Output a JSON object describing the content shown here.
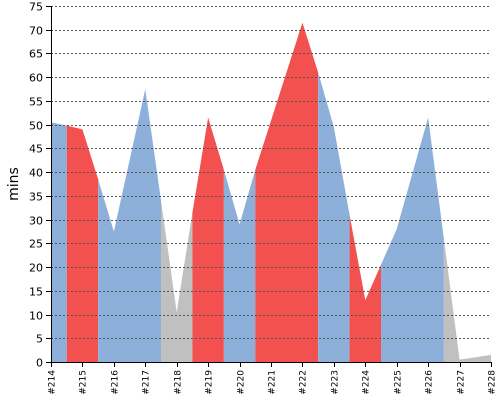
{
  "chart_data": {
    "type": "area",
    "title": "",
    "xlabel": "",
    "ylabel": "mins",
    "ylim": [
      0,
      75
    ],
    "yticks": [
      0,
      5,
      10,
      15,
      20,
      25,
      30,
      35,
      40,
      45,
      50,
      55,
      60,
      65,
      70,
      75
    ],
    "grid": true,
    "legend": "none",
    "categories": [
      "#214",
      "#215",
      "#216",
      "#217",
      "#218",
      "#219",
      "#220",
      "#221",
      "#222",
      "#223",
      "#224",
      "#225",
      "#226",
      "#227",
      "#228"
    ],
    "points": [
      {
        "x": 0.0,
        "y": 50.5
      },
      {
        "x": 0.5,
        "y": 49.8
      },
      {
        "x": 1.0,
        "y": 49.0
      },
      {
        "x": 1.5,
        "y": 38.5
      },
      {
        "x": 2.0,
        "y": 27.5
      },
      {
        "x": 3.0,
        "y": 57.5
      },
      {
        "x": 3.5,
        "y": 34.0
      },
      {
        "x": 4.0,
        "y": 10.5
      },
      {
        "x": 4.5,
        "y": 31.5
      },
      {
        "x": 5.0,
        "y": 51.5
      },
      {
        "x": 5.5,
        "y": 40.5
      },
      {
        "x": 6.0,
        "y": 29.0
      },
      {
        "x": 6.5,
        "y": 40.5
      },
      {
        "x": 8.0,
        "y": 71.5
      },
      {
        "x": 8.5,
        "y": 61.0
      },
      {
        "x": 9.0,
        "y": 49.5
      },
      {
        "x": 9.5,
        "y": 31.0
      },
      {
        "x": 10.0,
        "y": 13.0
      },
      {
        "x": 10.5,
        "y": 20.5
      },
      {
        "x": 11.0,
        "y": 28.0
      },
      {
        "x": 12.0,
        "y": 51.5
      },
      {
        "x": 12.5,
        "y": 26.0
      },
      {
        "x": 13.0,
        "y": 0.5
      },
      {
        "x": 14.0,
        "y": 1.5
      }
    ],
    "segments": [
      {
        "from": 0.0,
        "to": 0.5,
        "status": "blue"
      },
      {
        "from": 0.5,
        "to": 1.5,
        "status": "red"
      },
      {
        "from": 1.5,
        "to": 3.5,
        "status": "blue"
      },
      {
        "from": 3.5,
        "to": 4.5,
        "status": "grey"
      },
      {
        "from": 4.5,
        "to": 5.5,
        "status": "red"
      },
      {
        "from": 5.5,
        "to": 6.5,
        "status": "blue"
      },
      {
        "from": 6.5,
        "to": 8.5,
        "status": "red"
      },
      {
        "from": 8.5,
        "to": 9.5,
        "status": "blue"
      },
      {
        "from": 9.5,
        "to": 10.5,
        "status": "red"
      },
      {
        "from": 10.5,
        "to": 12.5,
        "status": "blue"
      },
      {
        "from": 12.5,
        "to": 14.0,
        "status": "grey"
      }
    ],
    "colors": {
      "blue": "#8db0db",
      "red": "#f35050",
      "grey": "#c0c0c0",
      "grid": "#555555",
      "axis": "#000000"
    }
  }
}
